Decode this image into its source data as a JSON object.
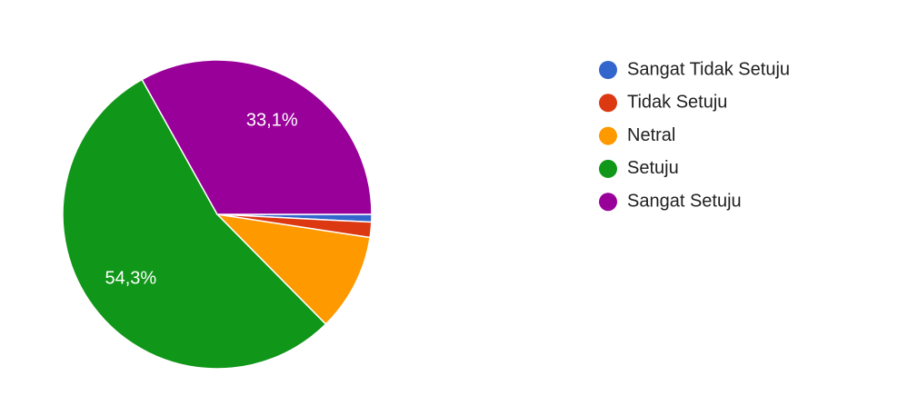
{
  "chart_data": {
    "type": "pie",
    "categories": [
      "Sangat Tidak Setuju",
      "Tidak Setuju",
      "Netral",
      "Setuju",
      "Sangat Setuju"
    ],
    "values": [
      0.8,
      1.6,
      10.2,
      54.3,
      33.1
    ],
    "value_labels": [
      null,
      null,
      null,
      "54,3%",
      "33,1%"
    ],
    "colors": [
      "#3366cc",
      "#dc3912",
      "#ff9900",
      "#109618",
      "#990099"
    ],
    "legend": "right"
  }
}
